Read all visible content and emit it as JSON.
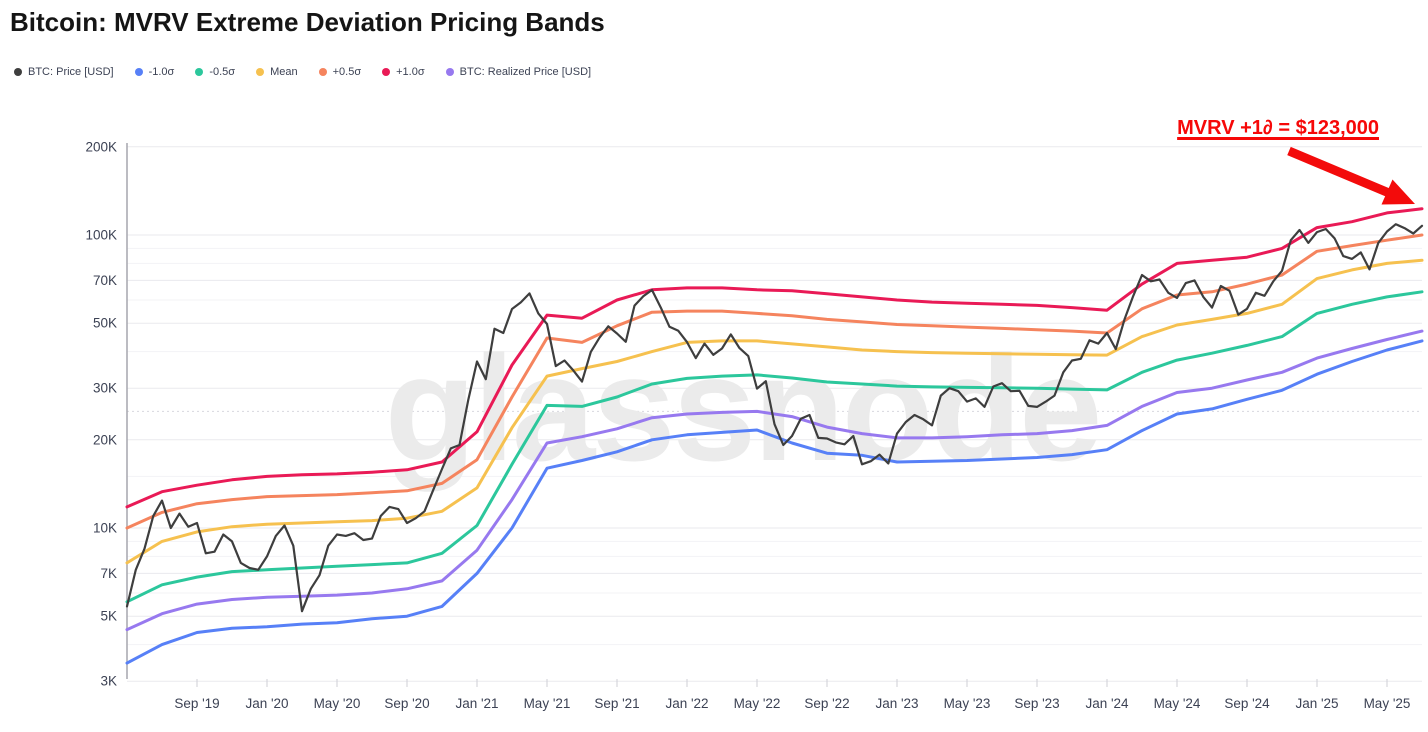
{
  "title": "Bitcoin: MVRV Extreme Deviation Pricing Bands",
  "watermark": "glassnode",
  "annotation": {
    "text": "MVRV +1∂ = $123,000",
    "color": "#f60808",
    "points_to_value_usd": 123000
  },
  "legend": {
    "items": [
      {
        "label": "BTC: Price [USD]",
        "color": "#3e3e3e"
      },
      {
        "label": "-1.0σ",
        "color": "#5780f7"
      },
      {
        "label": "-0.5σ",
        "color": "#2cc79c"
      },
      {
        "label": "Mean",
        "color": "#f6c14f"
      },
      {
        "label": "+0.5σ",
        "color": "#f5845e"
      },
      {
        "label": "+1.0σ",
        "color": "#e91a56"
      },
      {
        "label": "BTC: Realized Price [USD]",
        "color": "#9779ef"
      }
    ]
  },
  "chart_data": {
    "type": "line",
    "title": "Bitcoin: MVRV Extreme Deviation Pricing Bands",
    "xlabel": "",
    "ylabel": "",
    "grid": true,
    "legend_position": "top-left",
    "y_axis": {
      "scale": "log",
      "unit": "USD",
      "ylim_usd": [
        2890,
        206000
      ],
      "ticks_k": [
        200,
        100,
        70,
        50,
        30,
        20,
        10,
        7,
        5,
        3
      ],
      "tick_labels": [
        "200K",
        "100K",
        "70K",
        "50K",
        "30K",
        "20K",
        "10K",
        "7K",
        "5K",
        "3K"
      ],
      "minor_ticks_k": [
        90,
        80,
        60,
        40,
        15,
        9,
        8,
        6,
        4
      ],
      "dotted_tick_k": 25
    },
    "x_axis": {
      "start_month": "2019-05",
      "end_month": "2025-07",
      "months_total": 74,
      "tick_month_index": [
        4,
        8,
        12,
        16,
        20,
        24,
        28,
        32,
        36,
        40,
        44,
        48,
        52,
        56,
        60,
        64,
        68,
        72
      ],
      "tick_labels": [
        "Sep '19",
        "Jan '20",
        "May '20",
        "Sep '20",
        "Jan '21",
        "May '21",
        "Sep '21",
        "Jan '22",
        "May '22",
        "Sep '22",
        "Jan '23",
        "May '23",
        "Sep '23",
        "Jan '24",
        "May '24",
        "Sep '24",
        "Jan '25",
        "May '25"
      ]
    },
    "series": [
      {
        "id": "plus-1-sigma",
        "name": "+1.0σ",
        "color": "#e91a56",
        "stroke_width": 3,
        "month_start": 0,
        "month_step": 2,
        "values_k_usd": [
          11.8,
          13.3,
          14.0,
          14.6,
          15.0,
          15.2,
          15.3,
          15.5,
          15.8,
          16.8,
          21.3,
          36,
          53.3,
          52,
          60,
          65,
          66,
          66,
          65,
          64.5,
          63,
          61.5,
          60,
          59,
          58.5,
          58,
          57.5,
          56.5,
          55.4,
          68,
          80,
          82,
          84,
          90,
          106,
          111,
          119,
          123
        ]
      },
      {
        "id": "plus-05-sigma",
        "name": "+0.5σ",
        "color": "#f5845e",
        "stroke_width": 3,
        "month_start": 0,
        "month_step": 2,
        "values_k_usd": [
          10.0,
          11.3,
          12.1,
          12.5,
          12.8,
          12.9,
          13.0,
          13.2,
          13.4,
          14.2,
          17.1,
          28,
          44.5,
          43,
          49,
          54.5,
          55,
          55,
          54,
          53,
          51.5,
          50.5,
          49.5,
          49,
          48.5,
          48,
          47.5,
          47,
          46.3,
          56,
          62.4,
          64,
          68,
          73,
          88,
          92,
          96,
          100
        ]
      },
      {
        "id": "mean",
        "name": "Mean",
        "color": "#f6c14f",
        "stroke_width": 3,
        "month_start": 0,
        "month_step": 2,
        "values_k_usd": [
          7.6,
          9.0,
          9.7,
          10.1,
          10.3,
          10.4,
          10.5,
          10.6,
          10.8,
          11.4,
          13.7,
          22,
          33,
          35,
          37,
          40,
          43,
          43.5,
          43.5,
          42.5,
          41.5,
          40.5,
          40,
          39.7,
          39.5,
          39.3,
          39.2,
          39,
          38.9,
          45,
          49.3,
          51.5,
          54,
          58,
          71,
          76,
          80,
          82
        ]
      },
      {
        "id": "minus-05-sigma",
        "name": "-0.5σ",
        "color": "#2cc79c",
        "stroke_width": 3,
        "month_start": 0,
        "month_step": 2,
        "values_k_usd": [
          5.6,
          6.4,
          6.8,
          7.1,
          7.2,
          7.3,
          7.4,
          7.5,
          7.6,
          8.2,
          10.2,
          16.5,
          26.2,
          26,
          28,
          31,
          32.4,
          33,
          33.3,
          32.5,
          31.5,
          31,
          30.5,
          30.3,
          30.2,
          30.1,
          30,
          29.8,
          29.6,
          34,
          37.4,
          39.5,
          42,
          45,
          54,
          58,
          61.5,
          64
        ]
      },
      {
        "id": "btc-realized-price",
        "name": "BTC: Realized Price [USD]",
        "color": "#9779ef",
        "stroke_width": 3,
        "month_start": 0,
        "month_step": 2,
        "values_k_usd": [
          4.5,
          5.1,
          5.5,
          5.7,
          5.8,
          5.85,
          5.9,
          6.0,
          6.2,
          6.6,
          8.4,
          12.5,
          19.5,
          20.5,
          21.8,
          23.8,
          24.5,
          24.8,
          25,
          24,
          22.1,
          21,
          20.3,
          20.3,
          20.5,
          20.8,
          21,
          21.5,
          22.4,
          26,
          29,
          30,
          32,
          34,
          38,
          41,
          44,
          47
        ]
      },
      {
        "id": "minus-1-sigma",
        "name": "-1.0σ",
        "color": "#5780f7",
        "stroke_width": 3,
        "month_start": 0,
        "month_step": 2,
        "values_k_usd": [
          3.46,
          4.0,
          4.4,
          4.55,
          4.6,
          4.7,
          4.75,
          4.9,
          5.0,
          5.4,
          7.0,
          10,
          16,
          17,
          18.2,
          20,
          20.8,
          21.2,
          21.6,
          19.5,
          18,
          17.7,
          16.8,
          16.9,
          17.0,
          17.2,
          17.4,
          17.8,
          18.5,
          21.5,
          24.5,
          25.5,
          27.5,
          29.5,
          33.5,
          37,
          40.5,
          43.5
        ]
      },
      {
        "id": "btc-price",
        "name": "BTC: Price [USD]",
        "color": "#3e3e3e",
        "stroke_width": 2.2,
        "month_start": 0,
        "month_step": 0.5,
        "values_k_usd": [
          5.4,
          7.2,
          8.5,
          11.0,
          12.4,
          10.0,
          11.2,
          10.1,
          10.4,
          8.2,
          8.3,
          9.5,
          9.0,
          7.6,
          7.3,
          7.2,
          8.0,
          9.4,
          10.2,
          8.7,
          5.2,
          6.2,
          6.9,
          8.7,
          9.5,
          9.4,
          9.6,
          9.1,
          9.2,
          11.0,
          11.8,
          11.6,
          10.4,
          10.8,
          11.4,
          13.5,
          15.9,
          18.7,
          19.2,
          27.4,
          37.0,
          32.2,
          47.9,
          46.3,
          55.9,
          58.9,
          63.2,
          54.0,
          49.7,
          35.7,
          37.3,
          34.5,
          31.6,
          39.9,
          44.6,
          48.8,
          46.1,
          43.2,
          57.4,
          61.8,
          64.9,
          56.5,
          48.6,
          47.1,
          43.1,
          38.0,
          42.6,
          39.0,
          41.0,
          45.8,
          41.1,
          38.6,
          29.9,
          31.7,
          22.6,
          19.2,
          20.6,
          23.6,
          24.3,
          20.3,
          20.2,
          19.6,
          19.3,
          20.6,
          16.5,
          16.9,
          17.8,
          16.6,
          21.0,
          23.0,
          24.3,
          23.5,
          22.4,
          28.3,
          30.0,
          29.3,
          27.0,
          27.7,
          25.9,
          30.4,
          31.2,
          29.3,
          29.4,
          26.1,
          25.9,
          27.0,
          28.3,
          34.0,
          37.3,
          37.8,
          43.7,
          42.6,
          46.3,
          40.8,
          51.5,
          62.0,
          73.0,
          69.5,
          70.5,
          63.5,
          61.0,
          68.5,
          70.0,
          61.5,
          56.5,
          67.0,
          64.5,
          53.5,
          56.0,
          63.5,
          62.0,
          69.5,
          75.5,
          96.0,
          104.0,
          94.0,
          102.3,
          104.8,
          97.5,
          84.7,
          82.9,
          87.2,
          76.3,
          94.0,
          102.8,
          108.9,
          105.6,
          101.2,
          107.5
        ]
      }
    ]
  }
}
